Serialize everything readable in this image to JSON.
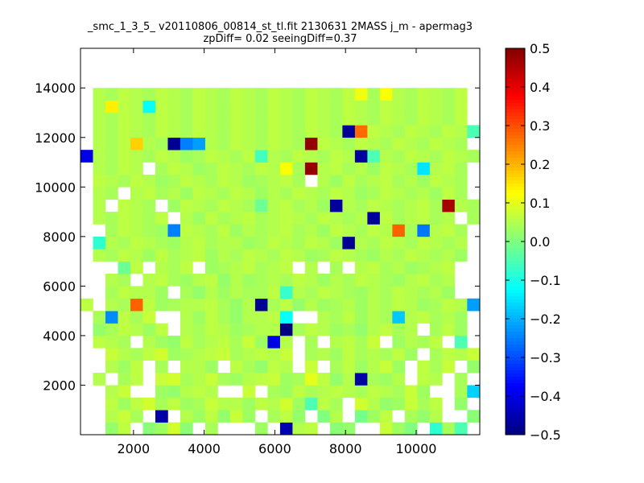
{
  "chart_data": {
    "type": "heatmap",
    "title_line1": "_smc_1_3_5_ v20110806_00814_st_tl.fit 2130631 2MASS j_m - apermag3",
    "title_line2": "zpDiff= 0.02 seeingDiff=0.37",
    "xlabel": "",
    "ylabel": "",
    "xlim": [
      500,
      11800
    ],
    "ylim": [
      0,
      15600
    ],
    "x_ticks": [
      2000,
      4000,
      6000,
      8000,
      10000
    ],
    "x_tick_labels": [
      "2000",
      "4000",
      "6000",
      "8000",
      "10000"
    ],
    "y_ticks": [
      2000,
      4000,
      6000,
      8000,
      10000,
      12000,
      14000
    ],
    "y_tick_labels": [
      "2000",
      "4000",
      "6000",
      "8000",
      "10000",
      "12000",
      "14000"
    ],
    "colorbar": {
      "colormap": "jet",
      "range": [
        -0.5,
        0.5
      ],
      "ticks": [
        0.5,
        0.4,
        0.3,
        0.2,
        0.1,
        0.0,
        -0.1,
        -0.2,
        -0.3,
        -0.4,
        -0.5
      ],
      "tick_labels": [
        "0.5",
        "0.4",
        "0.3",
        "0.2",
        "0.1",
        "0.0",
        "−0.1",
        "−0.2",
        "−0.3",
        "−0.4",
        "−0.5"
      ]
    },
    "cell_size": {
      "dx": 353,
      "dy": 500
    },
    "x_start": 500,
    "y_start": 0,
    "notes_empty_cells": "null = no data (white)",
    "grid": [
      [
        null,
        null,
        0.02,
        0.06,
        null,
        0.01,
        0.03,
        0.08,
        0.01,
        null,
        0.04,
        null,
        null,
        null,
        0.03,
        null,
        -0.45,
        0.05,
        0.06,
        null,
        0.01,
        0.02,
        null,
        null,
        0.07,
        0.03,
        0.0,
        null,
        -0.08,
        0.04,
        -0.05,
        null
      ],
      [
        null,
        null,
        0.05,
        0.07,
        0.04,
        null,
        -0.46,
        null,
        0.05,
        0.03,
        0.06,
        0.02,
        0.07,
        0.03,
        null,
        0.04,
        0.06,
        0.02,
        null,
        0.0,
        0.05,
        null,
        -0.01,
        0.03,
        0.06,
        null,
        0.04,
        0.02,
        0.05,
        null,
        null,
        0.01
      ],
      [
        null,
        null,
        0.06,
        0.03,
        0.06,
        0.08,
        0.04,
        0.06,
        0.03,
        0.04,
        0.07,
        0.05,
        0.05,
        0.03,
        0.06,
        0.05,
        0.08,
        0.03,
        -0.05,
        0.06,
        0.04,
        null,
        0.08,
        0.05,
        0.02,
        0.03,
        0.07,
        0.04,
        0.06,
        null,
        0.02,
        null
      ],
      [
        null,
        null,
        0.05,
        0.07,
        null,
        null,
        0.03,
        0.02,
        0.05,
        0.06,
        0.05,
        null,
        null,
        0.07,
        null,
        0.04,
        0.03,
        0.06,
        0.04,
        0.05,
        0.06,
        0.05,
        0.04,
        0.06,
        0.05,
        0.04,
        0.07,
        0.03,
        null,
        null,
        0.04,
        -0.17
      ],
      [
        null,
        0.05,
        null,
        0.04,
        0.06,
        null,
        0.07,
        0.08,
        0.04,
        0.05,
        0.07,
        0.04,
        0.03,
        0.05,
        0.06,
        0.07,
        0.03,
        0.04,
        0.1,
        0.06,
        0.02,
        0.05,
        -0.46,
        0.04,
        0.03,
        0.05,
        null,
        0.06,
        0.05,
        null,
        0.04,
        null
      ],
      [
        null,
        null,
        0.05,
        0.03,
        0.06,
        null,
        0.04,
        null,
        0.05,
        0.05,
        0.03,
        null,
        0.06,
        0.04,
        0.02,
        0.06,
        0.05,
        null,
        0.07,
        null,
        0.04,
        0.06,
        0.03,
        0.05,
        0.07,
        0.03,
        null,
        0.06,
        0.04,
        0.07,
        null,
        0.02
      ],
      [
        null,
        null,
        0.07,
        0.05,
        0.04,
        0.06,
        0.08,
        0.03,
        0.04,
        0.05,
        0.06,
        0.07,
        0.04,
        0.05,
        0.06,
        0.05,
        0.07,
        null,
        0.04,
        0.05,
        0.03,
        0.06,
        0.04,
        0.05,
        0.04,
        0.06,
        0.03,
        null,
        0.04,
        0.06,
        0.05,
        0.07
      ],
      [
        null,
        0.06,
        0.05,
        0.04,
        null,
        0.05,
        0.03,
        0.02,
        0.06,
        0.04,
        0.05,
        0.06,
        0.04,
        0.07,
        0.03,
        -0.4,
        0.05,
        null,
        0.04,
        null,
        0.05,
        0.06,
        0.04,
        0.07,
        null,
        0.03,
        0.05,
        0.04,
        0.06,
        null,
        -0.05,
        null
      ],
      [
        null,
        0.02,
        0.04,
        0.06,
        0.05,
        0.03,
        0.06,
        null,
        0.05,
        0.04,
        0.06,
        0.05,
        0.03,
        0.04,
        0.05,
        0.05,
        -0.5,
        0.04,
        0.06,
        0.05,
        0.03,
        0.04,
        0.02,
        0.05,
        0.06,
        0.04,
        0.05,
        null,
        0.04,
        0.06,
        0.03,
        null
      ],
      [
        null,
        0.04,
        -0.24,
        0.06,
        0.04,
        0.07,
        null,
        null,
        0.05,
        0.03,
        0.06,
        0.04,
        0.02,
        0.05,
        0.05,
        0.06,
        -0.12,
        null,
        null,
        0.05,
        0.04,
        0.06,
        0.03,
        0.05,
        0.04,
        -0.18,
        0.05,
        0.06,
        0.04,
        0.05,
        0.03,
        null
      ],
      [
        0.06,
        null,
        0.05,
        0.04,
        0.28,
        0.06,
        0.03,
        0.04,
        0.05,
        0.05,
        0.06,
        0.04,
        0.02,
        0.05,
        -0.48,
        0.04,
        0.06,
        0.02,
        0.05,
        0.03,
        0.04,
        0.05,
        0.03,
        0.05,
        0.04,
        0.06,
        0.05,
        0.03,
        0.04,
        0.06,
        0.05,
        -0.22
      ],
      [
        null,
        null,
        0.04,
        0.06,
        0.05,
        0.05,
        0.03,
        null,
        0.04,
        0.02,
        0.05,
        0.03,
        0.05,
        0.04,
        0.04,
        0.06,
        -0.07,
        0.05,
        0.04,
        0.06,
        0.05,
        0.04,
        0.03,
        0.05,
        0.04,
        0.06,
        0.05,
        0.04,
        0.05,
        0.03,
        null,
        null
      ],
      [
        null,
        null,
        0.05,
        0.04,
        null,
        0.05,
        0.06,
        0.04,
        0.03,
        0.05,
        0.06,
        0.02,
        0.05,
        0.03,
        0.04,
        0.05,
        0.04,
        0.06,
        0.05,
        0.03,
        0.05,
        0.04,
        0.06,
        0.05,
        0.04,
        0.03,
        0.05,
        0.06,
        0.04,
        0.05,
        null,
        null
      ],
      [
        null,
        null,
        null,
        -0.02,
        0.06,
        null,
        0.05,
        0.04,
        0.06,
        null,
        0.03,
        0.04,
        0.05,
        0.06,
        0.04,
        0.05,
        0.06,
        null,
        0.05,
        null,
        0.04,
        null,
        0.05,
        0.06,
        0.04,
        0.05,
        0.03,
        0.04,
        0.05,
        0.06,
        null,
        null
      ],
      [
        null,
        0.05,
        0.04,
        0.06,
        0.05,
        0.03,
        0.06,
        0.04,
        0.05,
        0.06,
        0.03,
        0.05,
        0.04,
        0.06,
        0.05,
        0.04,
        0.06,
        0.05,
        0.03,
        0.04,
        0.06,
        0.05,
        0.04,
        0.03,
        0.05,
        0.04,
        0.06,
        0.05,
        0.04,
        0.05,
        0.03,
        null
      ],
      [
        null,
        -0.08,
        0.05,
        0.04,
        0.06,
        0.05,
        0.04,
        0.03,
        0.05,
        0.06,
        0.04,
        0.05,
        0.05,
        0.03,
        0.04,
        0.06,
        0.05,
        0.04,
        0.06,
        0.05,
        0.03,
        -0.48,
        0.05,
        0.04,
        0.06,
        0.05,
        0.04,
        0.06,
        0.05,
        0.04,
        0.05,
        null
      ],
      [
        null,
        null,
        0.04,
        0.06,
        0.05,
        0.04,
        0.03,
        -0.25,
        0.06,
        0.05,
        0.04,
        0.06,
        0.03,
        0.05,
        0.04,
        0.05,
        0.06,
        0.04,
        0.05,
        0.03,
        0.06,
        0.05,
        0.04,
        0.06,
        0.05,
        0.28,
        0.04,
        -0.26,
        0.05,
        0.06,
        0.04,
        null
      ],
      [
        null,
        0.05,
        0.04,
        0.06,
        0.05,
        0.04,
        0.06,
        null,
        0.05,
        0.03,
        0.06,
        0.04,
        0.05,
        0.06,
        0.04,
        0.05,
        0.06,
        0.05,
        0.04,
        0.06,
        0.05,
        0.04,
        0.05,
        -0.47,
        0.06,
        0.04,
        0.05,
        0.06,
        0.04,
        0.05,
        null,
        0.04
      ],
      [
        null,
        0.05,
        null,
        0.06,
        0.05,
        0.04,
        null,
        0.03,
        0.06,
        0.05,
        0.04,
        0.06,
        0.05,
        0.04,
        -0.02,
        0.05,
        0.06,
        0.04,
        0.05,
        0.03,
        -0.47,
        0.05,
        0.04,
        0.06,
        0.05,
        0.04,
        0.05,
        0.06,
        0.04,
        0.46,
        0.05,
        0.04
      ],
      [
        null,
        0.05,
        0.04,
        null,
        0.05,
        0.06,
        0.04,
        0.05,
        0.03,
        0.06,
        0.05,
        0.04,
        0.06,
        0.05,
        0.03,
        0.05,
        0.04,
        0.06,
        0.05,
        0.04,
        0.06,
        0.05,
        0.03,
        0.04,
        0.06,
        0.05,
        0.04,
        0.05,
        0.03,
        0.06,
        0.04,
        null
      ],
      [
        null,
        0.06,
        0.05,
        0.04,
        0.06,
        0.05,
        0.03,
        0.04,
        0.06,
        0.05,
        0.04,
        0.06,
        0.05,
        0.03,
        0.04,
        0.05,
        0.06,
        0.04,
        null,
        0.05,
        0.03,
        0.06,
        0.04,
        0.05,
        0.06,
        0.04,
        0.05,
        0.03,
        0.06,
        0.05,
        0.04,
        null
      ],
      [
        null,
        0.05,
        0.04,
        0.06,
        0.05,
        null,
        0.04,
        0.06,
        0.05,
        0.03,
        0.04,
        0.06,
        0.05,
        0.04,
        0.06,
        0.05,
        0.12,
        0.04,
        0.48,
        0.05,
        0.06,
        0.04,
        0.05,
        0.03,
        0.06,
        0.05,
        0.04,
        -0.15,
        0.05,
        0.06,
        0.04,
        null
      ],
      [
        -0.4,
        0.05,
        0.04,
        0.06,
        0.05,
        0.04,
        0.06,
        0.05,
        0.03,
        0.04,
        0.06,
        0.05,
        0.04,
        0.06,
        -0.06,
        0.05,
        0.04,
        0.06,
        0.05,
        0.04,
        0.06,
        0.05,
        -0.47,
        -0.05,
        0.05,
        0.04,
        0.06,
        0.05,
        0.04,
        0.06,
        0.05,
        0.04
      ],
      [
        null,
        0.05,
        0.04,
        0.06,
        0.17,
        0.05,
        0.04,
        -0.48,
        -0.25,
        -0.22,
        0.05,
        0.04,
        0.06,
        0.05,
        0.04,
        0.06,
        0.05,
        0.04,
        0.48,
        0.06,
        0.05,
        0.04,
        0.06,
        0.05,
        0.04,
        0.06,
        0.05,
        0.04,
        0.06,
        0.05,
        0.04,
        null
      ],
      [
        null,
        0.05,
        0.04,
        0.06,
        0.05,
        0.04,
        0.06,
        0.05,
        0.04,
        0.06,
        0.05,
        0.04,
        0.06,
        0.05,
        0.04,
        0.06,
        0.05,
        0.04,
        0.06,
        0.05,
        0.04,
        -0.48,
        0.27,
        0.06,
        0.05,
        0.04,
        0.06,
        0.05,
        0.04,
        0.06,
        0.05,
        -0.05
      ],
      [
        null,
        0.05,
        0.04,
        0.06,
        0.05,
        0.04,
        0.06,
        0.05,
        0.04,
        0.06,
        0.05,
        0.04,
        0.06,
        0.05,
        0.04,
        0.06,
        0.05,
        0.04,
        0.06,
        0.05,
        0.04,
        0.06,
        0.05,
        0.04,
        0.06,
        0.05,
        0.04,
        0.06,
        0.05,
        0.04,
        0.06,
        null
      ],
      [
        null,
        0.05,
        0.14,
        0.06,
        0.05,
        -0.12,
        0.06,
        0.05,
        0.04,
        0.06,
        0.05,
        0.04,
        0.06,
        0.05,
        0.04,
        0.06,
        0.05,
        0.04,
        0.06,
        0.05,
        0.04,
        0.06,
        0.05,
        0.04,
        0.06,
        0.05,
        0.04,
        0.06,
        0.05,
        0.04,
        0.06,
        null
      ],
      [
        null,
        0.05,
        0.04,
        0.06,
        0.05,
        0.04,
        0.06,
        0.05,
        0.04,
        0.06,
        0.05,
        0.04,
        0.06,
        0.05,
        0.04,
        0.06,
        0.05,
        0.04,
        0.06,
        0.05,
        0.04,
        0.06,
        0.11,
        0.04,
        0.12,
        0.05,
        0.04,
        0.06,
        0.05,
        0.04,
        0.06,
        null
      ]
    ]
  }
}
